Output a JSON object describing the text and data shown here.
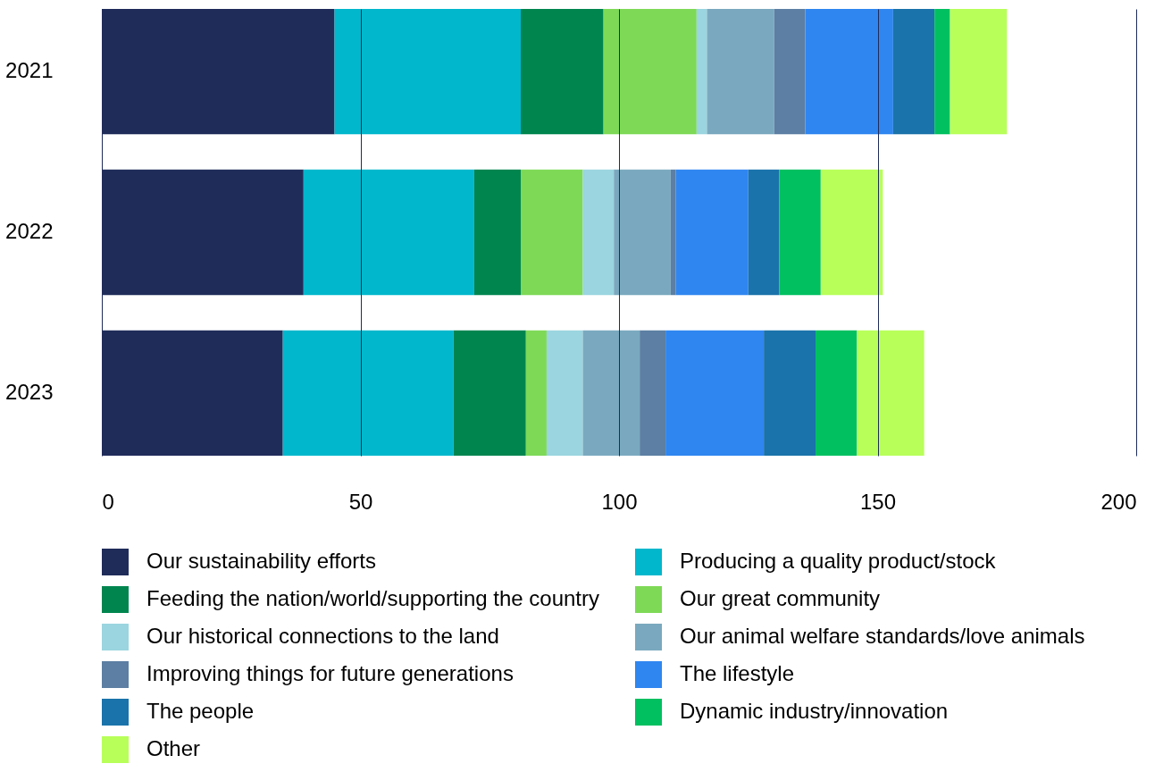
{
  "chart_data": {
    "type": "bar",
    "orientation": "horizontal",
    "stacked": true,
    "categories": [
      "2021",
      "2022",
      "2023"
    ],
    "xlim": [
      0,
      200
    ],
    "xticks": [
      0,
      50,
      100,
      150,
      200
    ],
    "grid": "x",
    "legend": "bottom",
    "series": [
      {
        "name": "Our sustainability efforts",
        "color": "#1f2c5a",
        "values": [
          45,
          39,
          35
        ]
      },
      {
        "name": "Producing a quality product/stock",
        "color": "#00b7cc",
        "values": [
          36,
          33,
          33
        ]
      },
      {
        "name": "Feeding the nation/world/supporting the country",
        "color": "#00854f",
        "values": [
          16,
          9,
          14
        ]
      },
      {
        "name": "Our great community",
        "color": "#7ed957",
        "values": [
          18,
          12,
          4
        ]
      },
      {
        "name": "Our historical connections to the land",
        "color": "#9ad5e0",
        "values": [
          2,
          6,
          7
        ]
      },
      {
        "name": "Our animal welfare standards/love animals",
        "color": "#7aa9bf",
        "values": [
          13,
          11,
          11
        ]
      },
      {
        "name": "Improving things for future generations",
        "color": "#5c7fa3",
        "values": [
          6,
          1,
          5
        ]
      },
      {
        "name": "The lifestyle",
        "color": "#2f86f0",
        "values": [
          17,
          14,
          19
        ]
      },
      {
        "name": "The people",
        "color": "#1a73aa",
        "values": [
          8,
          6,
          10
        ]
      },
      {
        "name": "Dynamic industry/innovation",
        "color": "#00c060",
        "values": [
          3,
          8,
          8
        ]
      },
      {
        "name": "Other",
        "color": "#b8ff5a",
        "values": [
          11,
          12,
          13
        ]
      }
    ]
  }
}
